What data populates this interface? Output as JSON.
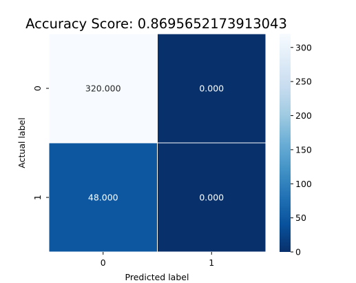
{
  "chart_data": {
    "type": "heatmap",
    "title": "Accuracy Score: 0.8695652173913043",
    "xlabel": "Predicted label",
    "ylabel": "Actual label",
    "x_categories": [
      "0",
      "1"
    ],
    "y_categories": [
      "0",
      "1"
    ],
    "values": [
      [
        320,
        0
      ],
      [
        48,
        0
      ]
    ],
    "annotations": [
      [
        "320.000",
        "0.000"
      ],
      [
        "48.000",
        "0.000"
      ]
    ],
    "colormap": "Blues_r",
    "colorbar": {
      "range": [
        0,
        320
      ],
      "ticks": [
        0,
        50,
        100,
        150,
        200,
        250,
        300
      ],
      "tick_labels": [
        "0",
        "50",
        "100",
        "150",
        "200",
        "250",
        "300"
      ]
    },
    "colors": {
      "low": "#08306b",
      "high": "#f7fbff",
      "cell_border": "#ffffff"
    }
  }
}
